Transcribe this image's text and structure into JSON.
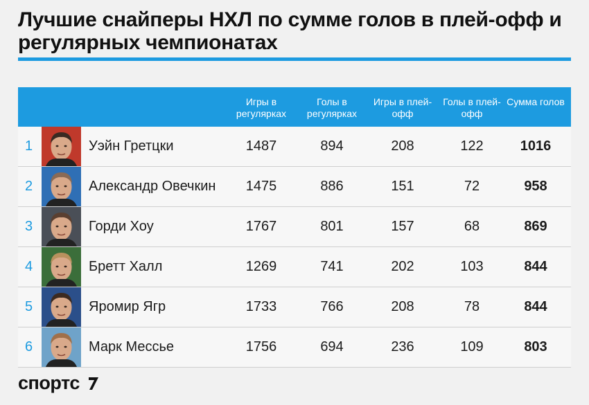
{
  "title": "Лучшие снайперы НХЛ по сумме голов в плей-офф и регулярных чемпионатах",
  "logo": "спортс",
  "chart_data": {
    "type": "table",
    "columns": [
      "Игры в регулярках",
      "Голы в регулярках",
      "Игры в плей-офф",
      "Голы в плей-офф",
      "Сумма голов"
    ],
    "rows": [
      {
        "rank": "1",
        "name": "Уэйн Гретцки",
        "values": [
          "1487",
          "894",
          "208",
          "122",
          "1016"
        ]
      },
      {
        "rank": "2",
        "name": "Александр Овечкин",
        "values": [
          "1475",
          "886",
          "151",
          "72",
          "958"
        ]
      },
      {
        "rank": "3",
        "name": "Горди Хоу",
        "values": [
          "1767",
          "801",
          "157",
          "68",
          "869"
        ]
      },
      {
        "rank": "4",
        "name": "Бретт Халл",
        "values": [
          "1269",
          "741",
          "202",
          "103",
          "844"
        ]
      },
      {
        "rank": "5",
        "name": "Яромир Ягр",
        "values": [
          "1733",
          "766",
          "208",
          "78",
          "844"
        ]
      },
      {
        "rank": "6",
        "name": "Марк Мессье",
        "values": [
          "1756",
          "694",
          "236",
          "109",
          "803"
        ]
      }
    ]
  },
  "colors": {
    "accent": "#1d9be0",
    "background": "#f1f1f1"
  }
}
